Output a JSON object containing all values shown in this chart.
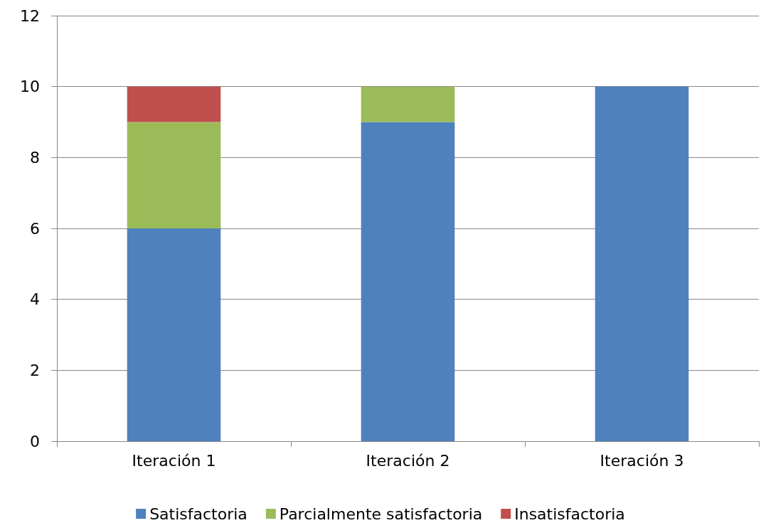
{
  "chart_data": {
    "type": "bar",
    "stacked": true,
    "categories": [
      "Iteración 1",
      "Iteración 2",
      "Iteración 3"
    ],
    "series": [
      {
        "name": "Satisfactoria",
        "color": "#4f81bd",
        "values": [
          6,
          9,
          10
        ]
      },
      {
        "name": "Parcialmente satisfactoria",
        "color": "#9bbb59",
        "values": [
          3,
          1,
          0
        ]
      },
      {
        "name": "Insatisfactoria",
        "color": "#c0504d",
        "values": [
          1,
          0,
          0
        ]
      }
    ],
    "ylim": [
      0,
      12
    ],
    "yticks": [
      0,
      2,
      4,
      6,
      8,
      10,
      12
    ],
    "grid": "y",
    "legend": "bottom"
  }
}
